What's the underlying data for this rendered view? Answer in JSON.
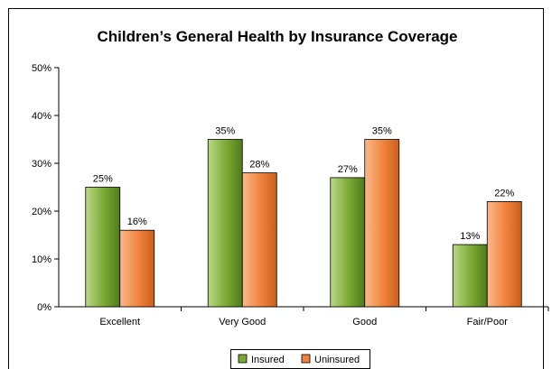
{
  "chart_data": {
    "type": "bar",
    "title": "Children’s General Health by Insurance Coverage",
    "categories": [
      "Excellent",
      "Very Good",
      "Good",
      "Fair/Poor"
    ],
    "series": [
      {
        "name": "Insured",
        "values": [
          25,
          35,
          27,
          13
        ],
        "labels": [
          "25%",
          "35%",
          "27%",
          "13%"
        ],
        "color": "#7aa832"
      },
      {
        "name": "Uninsured",
        "values": [
          16,
          28,
          35,
          22
        ],
        "labels": [
          "16%",
          "28%",
          "35%",
          "22%"
        ],
        "color": "#f0823c"
      }
    ],
    "ylim": [
      0,
      50
    ],
    "yticks": [
      "0%",
      "10%",
      "20%",
      "30%",
      "40%",
      "50%"
    ],
    "grid": false,
    "legend_position": "bottom-center"
  }
}
